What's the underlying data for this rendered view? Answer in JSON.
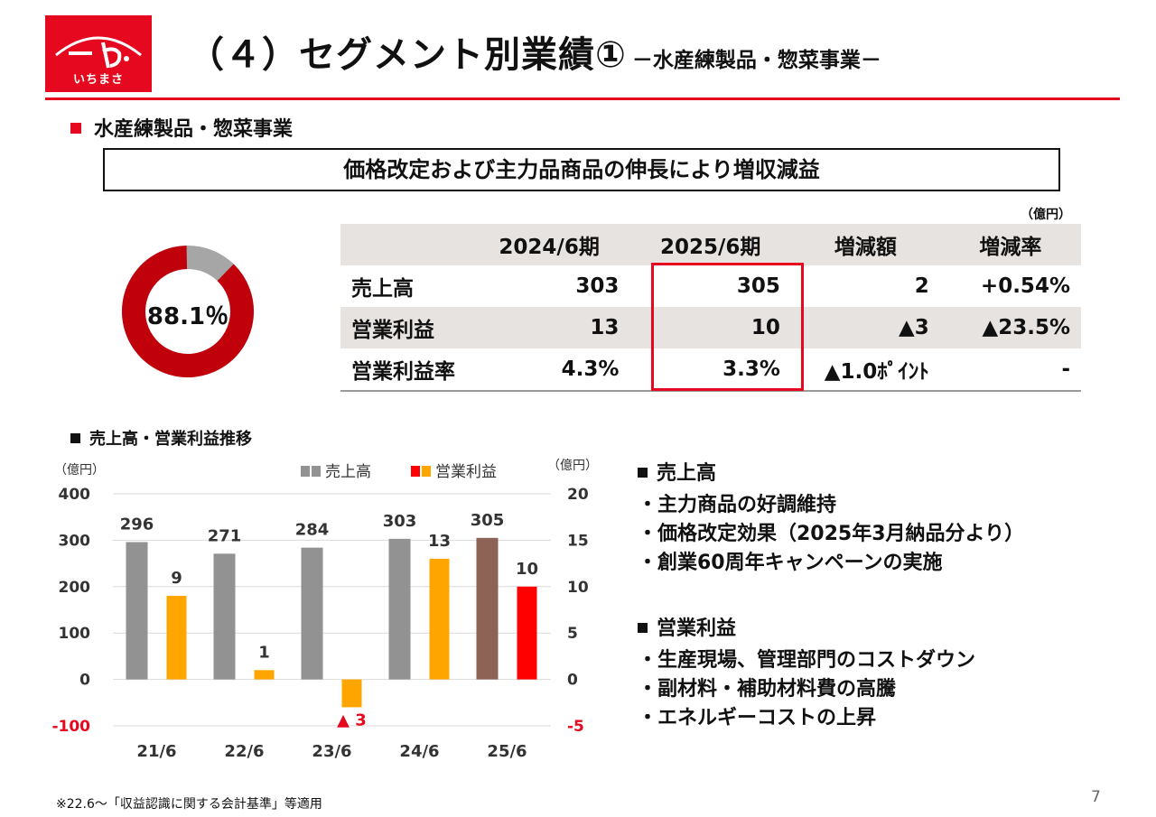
{
  "logo": {
    "text": "いちまさ"
  },
  "header": {
    "title": "（４）セグメント別業績①",
    "subtitle": "－水産練製品・惣菜事業－",
    "accent_color": "#e5081e"
  },
  "segment": {
    "heading": "水産練製品・惣菜事業",
    "summary": "価格改定および主力品商品の伸長により増収減益"
  },
  "donut": {
    "value": 88.1,
    "label": "88.1％",
    "colors": [
      "#c0000a",
      "#a6a6a6"
    ]
  },
  "table": {
    "unit": "（億円）",
    "columns": [
      "",
      "2024/6期",
      "2025/6期",
      "増減額",
      "増減率"
    ],
    "rows": [
      [
        "売上高",
        "303",
        "305",
        "2",
        "+0.54%"
      ],
      [
        "営業利益",
        "13",
        "10",
        "▲3",
        "▲23.5%"
      ],
      [
        "営業利益率",
        "4.3%",
        "3.3%",
        "▲1.0ﾎﾟｲﾝﾄ",
        "-"
      ]
    ]
  },
  "chart_heading": "売上高・営業利益推移",
  "chart_data": {
    "type": "bar",
    "categories": [
      "21/6",
      "22/6",
      "23/6",
      "24/6",
      "25/6"
    ],
    "series": [
      {
        "name": "売上高",
        "axis": "left",
        "values": [
          296,
          271,
          284,
          303,
          305
        ],
        "labels": [
          "296",
          "271",
          "284",
          "303",
          "305"
        ],
        "colors": [
          "#929292",
          "#929292",
          "#929292",
          "#929292",
          "#8c6355"
        ]
      },
      {
        "name": "営業利益",
        "axis": "right",
        "values": [
          9,
          1,
          -3,
          13,
          10
        ],
        "labels": [
          "9",
          "1",
          "▲ 3",
          "13",
          "10"
        ],
        "colors": [
          "#ffa500",
          "#ffa500",
          "#ffa500",
          "#ffa500",
          "#ff0000"
        ]
      }
    ],
    "y_left": {
      "unit": "（億円）",
      "ylim": [
        -100,
        400
      ],
      "ticks": [
        "400",
        "300",
        "200",
        "100",
        "0",
        "-100"
      ]
    },
    "y_right": {
      "unit": "（億円）",
      "ylim": [
        -5,
        20
      ],
      "ticks": [
        "20",
        "15",
        "10",
        "5",
        "0",
        "-5"
      ]
    },
    "legend": {
      "placement": "top",
      "swatch_colors": [
        [
          "#929292",
          "#929292"
        ],
        [
          "#ff0000",
          "#ffa500"
        ]
      ]
    },
    "grid": true
  },
  "notes": [
    {
      "heading": "売上高",
      "items": [
        "・主力商品の好調維持",
        "・価格改定効果（2025年3月納品分より）",
        "・創業60周年キャンペーンの実施"
      ]
    },
    {
      "heading": "営業利益",
      "items": [
        "・生産現場、管理部門のコストダウン",
        "・副材料・補助材料費の高騰",
        "・エネルギーコストの上昇"
      ]
    }
  ],
  "footnote": "※22.6～「収益認識に関する会計基準」等適用",
  "page_number": "7"
}
